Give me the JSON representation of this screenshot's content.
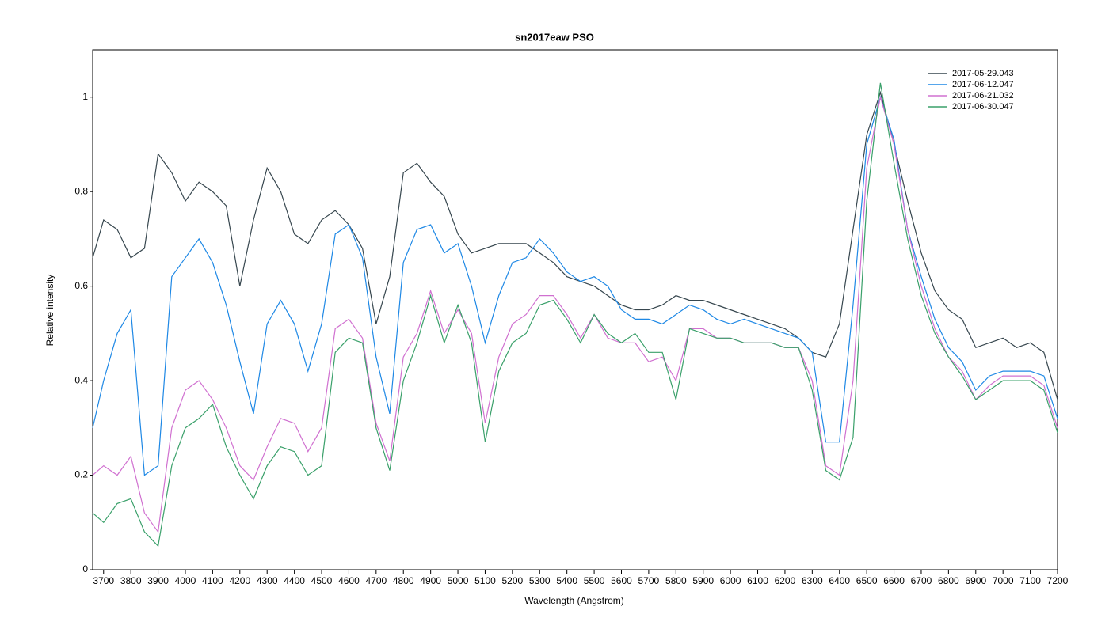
{
  "chart_data": {
    "type": "line",
    "title": "sn2017eaw  PSO",
    "xlabel": "Wavelength (Angstrom)",
    "ylabel": "Relative intensity",
    "x": [
      3660,
      3700,
      3750,
      3800,
      3850,
      3900,
      3950,
      4000,
      4050,
      4100,
      4150,
      4200,
      4250,
      4300,
      4350,
      4400,
      4450,
      4500,
      4550,
      4600,
      4650,
      4700,
      4750,
      4800,
      4850,
      4900,
      4950,
      5000,
      5050,
      5100,
      5150,
      5200,
      5250,
      5300,
      5350,
      5400,
      5450,
      5500,
      5550,
      5600,
      5650,
      5700,
      5750,
      5800,
      5850,
      5900,
      5950,
      6000,
      6050,
      6100,
      6150,
      6200,
      6250,
      6300,
      6350,
      6400,
      6450,
      6500,
      6550,
      6600,
      6650,
      6700,
      6750,
      6800,
      6850,
      6900,
      6950,
      7000,
      7050,
      7100,
      7150,
      7200
    ],
    "series": [
      {
        "name": "2017-05-29.043",
        "color": "#37474f",
        "values": [
          0.66,
          0.74,
          0.72,
          0.66,
          0.68,
          0.88,
          0.84,
          0.78,
          0.82,
          0.8,
          0.77,
          0.6,
          0.74,
          0.85,
          0.8,
          0.71,
          0.69,
          0.74,
          0.76,
          0.73,
          0.68,
          0.52,
          0.62,
          0.84,
          0.86,
          0.82,
          0.79,
          0.71,
          0.67,
          0.68,
          0.69,
          0.69,
          0.69,
          0.67,
          0.65,
          0.62,
          0.61,
          0.6,
          0.58,
          0.56,
          0.55,
          0.55,
          0.56,
          0.58,
          0.57,
          0.57,
          0.56,
          0.55,
          0.54,
          0.53,
          0.52,
          0.51,
          0.49,
          0.46,
          0.45,
          0.52,
          0.72,
          0.92,
          1.01,
          0.9,
          0.78,
          0.67,
          0.59,
          0.55,
          0.53,
          0.47,
          0.48,
          0.49,
          0.47,
          0.48,
          0.46,
          0.36
        ]
      },
      {
        "name": "2017-06-12.047",
        "color": "#1e88e5",
        "values": [
          0.3,
          0.4,
          0.5,
          0.55,
          0.2,
          0.22,
          0.62,
          0.66,
          0.7,
          0.65,
          0.56,
          0.44,
          0.33,
          0.52,
          0.57,
          0.52,
          0.42,
          0.52,
          0.71,
          0.73,
          0.66,
          0.45,
          0.33,
          0.65,
          0.72,
          0.73,
          0.67,
          0.69,
          0.6,
          0.48,
          0.58,
          0.65,
          0.66,
          0.7,
          0.67,
          0.63,
          0.61,
          0.62,
          0.6,
          0.55,
          0.53,
          0.53,
          0.52,
          0.54,
          0.56,
          0.55,
          0.53,
          0.52,
          0.53,
          0.52,
          0.51,
          0.5,
          0.49,
          0.46,
          0.27,
          0.27,
          0.56,
          0.9,
          1.0,
          0.91,
          0.72,
          0.62,
          0.53,
          0.47,
          0.44,
          0.38,
          0.41,
          0.42,
          0.42,
          0.42,
          0.41,
          0.32
        ]
      },
      {
        "name": "2017-06-21.032",
        "color": "#d070d0",
        "values": [
          0.2,
          0.22,
          0.2,
          0.24,
          0.12,
          0.08,
          0.3,
          0.38,
          0.4,
          0.36,
          0.3,
          0.22,
          0.19,
          0.26,
          0.32,
          0.31,
          0.25,
          0.3,
          0.51,
          0.53,
          0.49,
          0.31,
          0.23,
          0.45,
          0.5,
          0.59,
          0.5,
          0.55,
          0.5,
          0.31,
          0.45,
          0.52,
          0.54,
          0.58,
          0.58,
          0.54,
          0.49,
          0.54,
          0.49,
          0.48,
          0.48,
          0.44,
          0.45,
          0.4,
          0.51,
          0.51,
          0.49,
          0.49,
          0.48,
          0.48,
          0.48,
          0.47,
          0.47,
          0.4,
          0.22,
          0.2,
          0.4,
          0.85,
          1.0,
          0.9,
          0.72,
          0.6,
          0.51,
          0.45,
          0.42,
          0.36,
          0.39,
          0.41,
          0.41,
          0.41,
          0.39,
          0.3
        ]
      },
      {
        "name": "2017-06-30.047",
        "color": "#3aa06a",
        "values": [
          0.12,
          0.1,
          0.14,
          0.15,
          0.08,
          0.05,
          0.22,
          0.3,
          0.32,
          0.35,
          0.26,
          0.2,
          0.15,
          0.22,
          0.26,
          0.25,
          0.2,
          0.22,
          0.46,
          0.49,
          0.48,
          0.3,
          0.21,
          0.4,
          0.48,
          0.58,
          0.48,
          0.56,
          0.48,
          0.27,
          0.42,
          0.48,
          0.5,
          0.56,
          0.57,
          0.53,
          0.48,
          0.54,
          0.5,
          0.48,
          0.5,
          0.46,
          0.46,
          0.36,
          0.51,
          0.5,
          0.49,
          0.49,
          0.48,
          0.48,
          0.48,
          0.47,
          0.47,
          0.38,
          0.21,
          0.19,
          0.28,
          0.78,
          1.03,
          0.86,
          0.7,
          0.58,
          0.5,
          0.45,
          0.41,
          0.36,
          0.38,
          0.4,
          0.4,
          0.4,
          0.38,
          0.29
        ]
      }
    ],
    "xlim": [
      3660,
      7200
    ],
    "ylim": [
      0,
      1.1
    ],
    "xticks": [
      3700,
      3800,
      3900,
      4000,
      4100,
      4200,
      4300,
      4400,
      4500,
      4600,
      4700,
      4800,
      4900,
      5000,
      5100,
      5200,
      5300,
      5400,
      5500,
      5600,
      5700,
      5800,
      5900,
      6000,
      6100,
      6200,
      6300,
      6400,
      6500,
      6600,
      6700,
      6800,
      6900,
      7000,
      7100,
      7200
    ],
    "yticks": [
      0,
      0.2,
      0.4,
      0.6,
      0.8,
      1
    ],
    "legend": "upper right",
    "grid": false
  }
}
